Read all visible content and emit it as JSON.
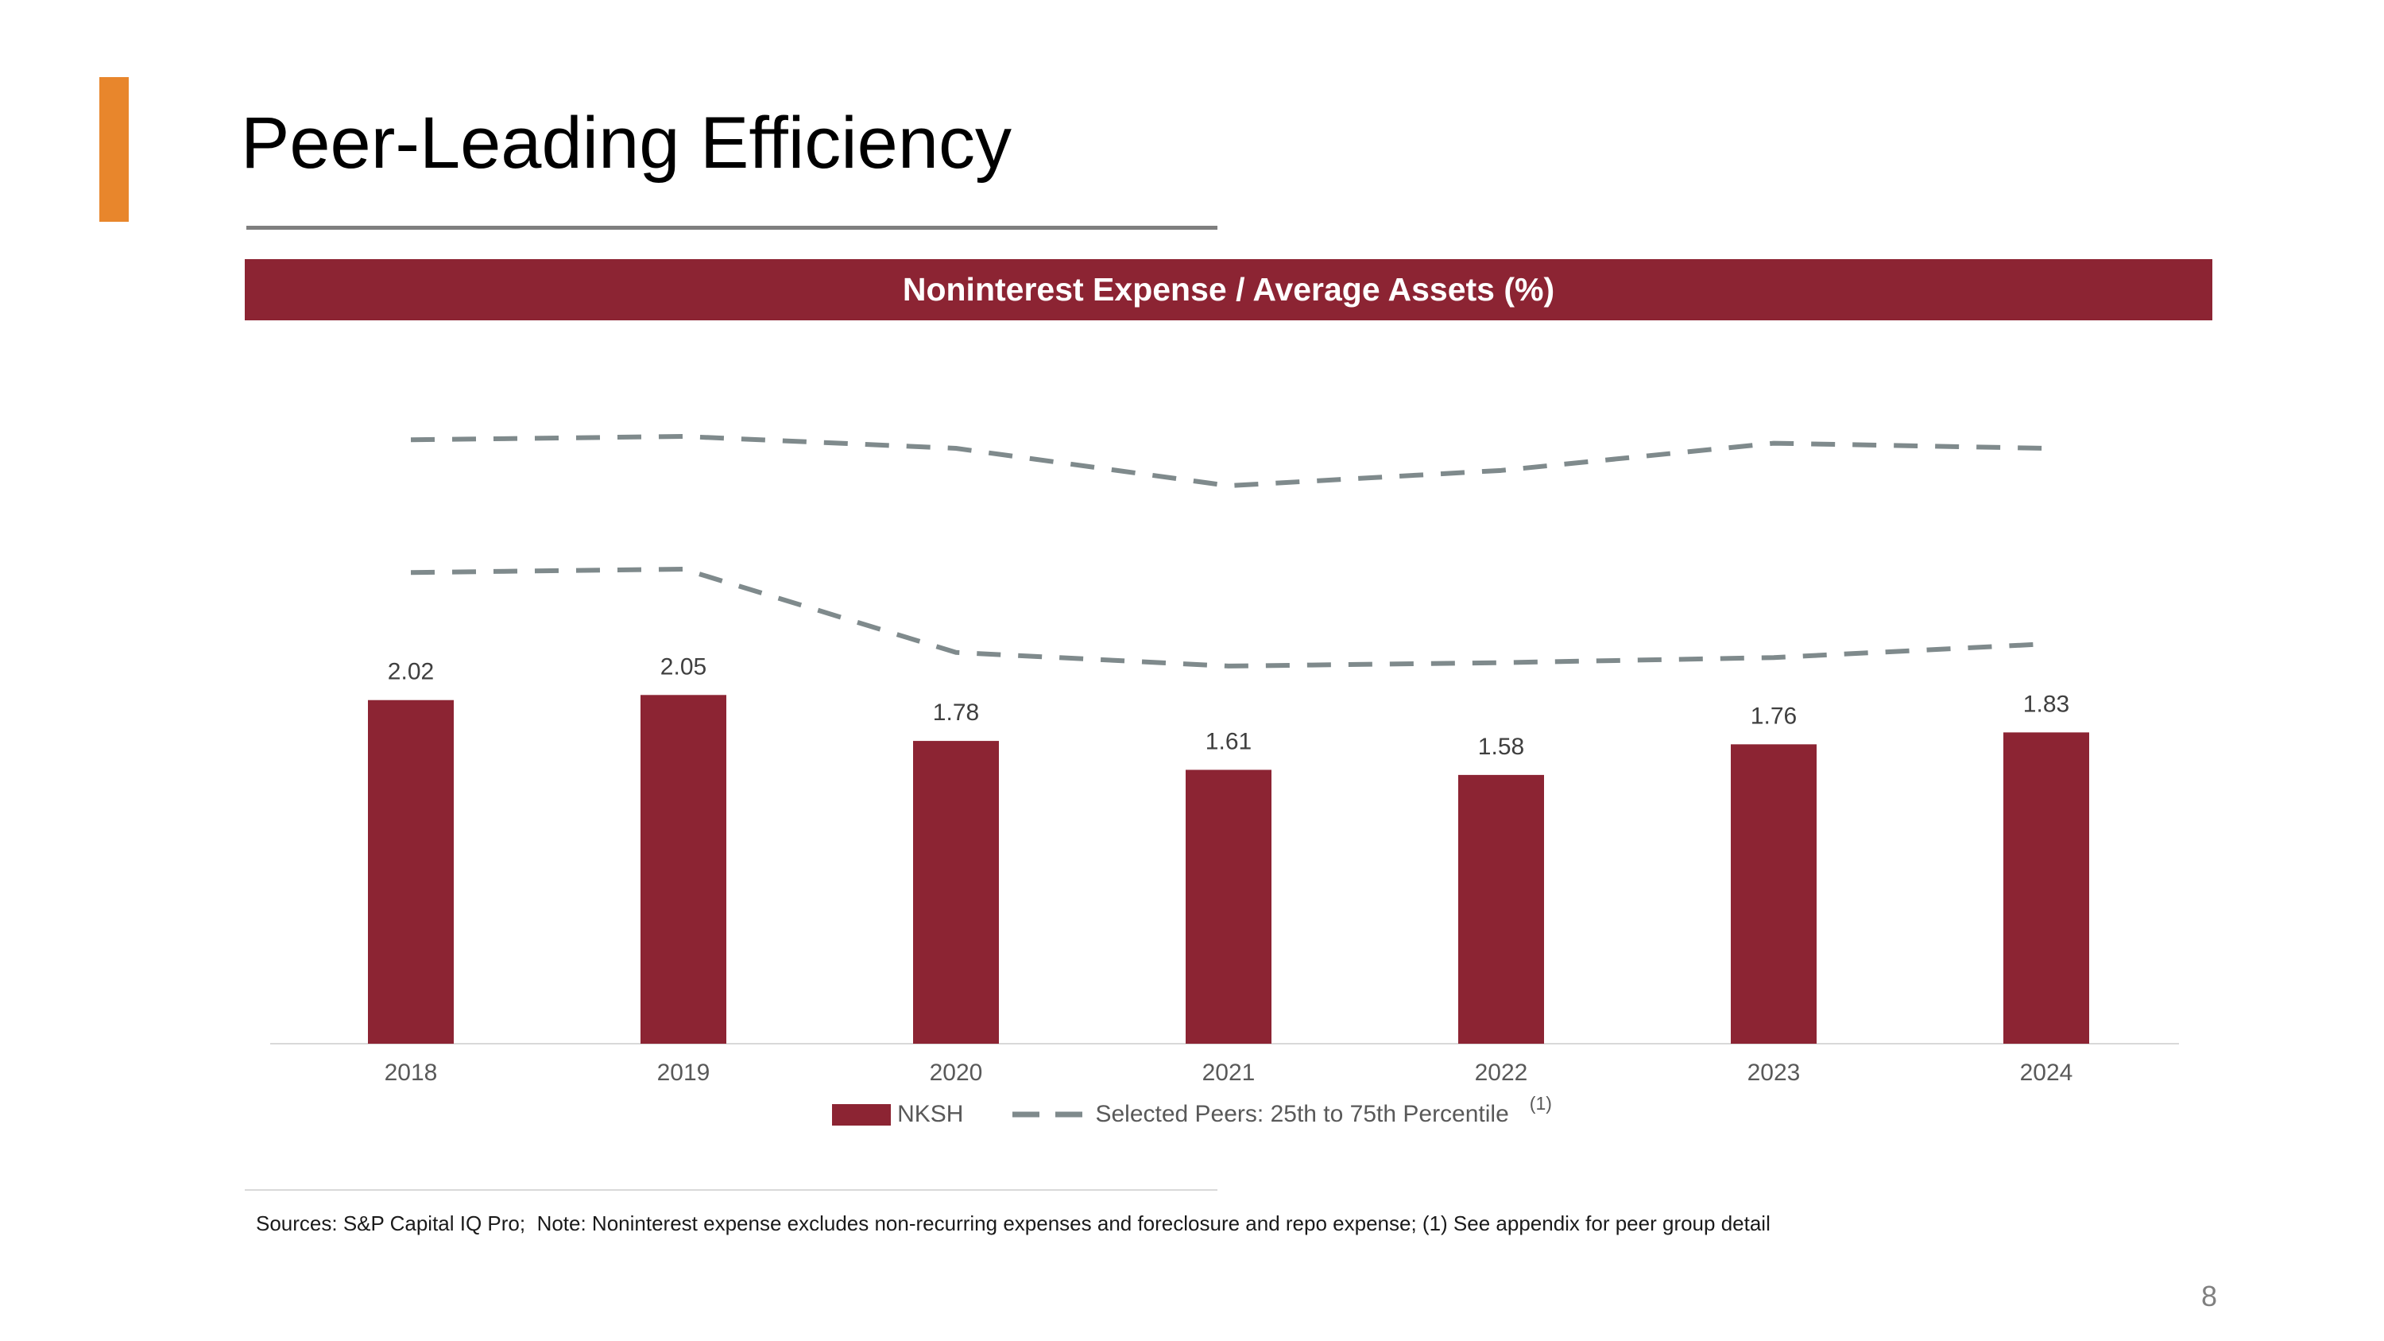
{
  "slide": {
    "title": "Peer-Leading Efficiency",
    "page_number": "8",
    "source_note": "Sources: S&P Capital IQ Pro;  Note: Noninterest expense excludes non-recurring expenses and foreclosure and repo expense; (1) See appendix for peer group detail",
    "accent_color": "#E8862C",
    "maroon": "#8C2433",
    "line_gray": "#7F8A8C"
  },
  "chart_data": {
    "type": "bar",
    "title": "Noninterest Expense / Average Assets (%)",
    "categories": [
      "2018",
      "2019",
      "2020",
      "2021",
      "2022",
      "2023",
      "2024"
    ],
    "series": [
      {
        "name": "NKSH",
        "kind": "bar",
        "values": [
          2.02,
          2.05,
          1.78,
          1.61,
          1.58,
          1.76,
          1.83
        ],
        "color": "#8C2433"
      },
      {
        "name": "Selected Peers 75th Percentile",
        "kind": "dashed-line",
        "values": [
          3.55,
          3.57,
          3.5,
          3.28,
          3.37,
          3.53,
          3.5
        ],
        "color": "#7F8A8C"
      },
      {
        "name": "Selected Peers 25th Percentile",
        "kind": "dashed-line",
        "values": [
          2.77,
          2.79,
          2.3,
          2.22,
          2.24,
          2.27,
          2.35
        ],
        "color": "#7F8A8C"
      }
    ],
    "ylim": [
      0,
      4.2
    ],
    "grid": false,
    "data_labels_decimals": 2,
    "legend": {
      "position": "bottom-center",
      "nksh_label": "NKSH",
      "peers_label": "Selected Peers: 25th to 75th Percentile",
      "footnote_marker": "(1)"
    }
  }
}
